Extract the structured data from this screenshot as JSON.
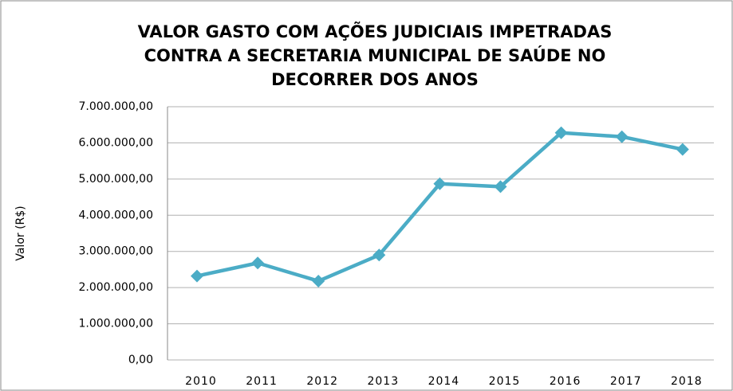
{
  "chart_data": {
    "type": "line",
    "title": [
      "VALOR GASTO COM AÇÕES JUDICIAIS IMPETRADAS",
      "CONTRA A SECRETARIA MUNICIPAL DE SAÚDE NO",
      "DECORRER DOS ANOS"
    ],
    "y_label": "Valor (R$)",
    "categories": [
      "2010",
      "2011",
      "2012",
      "2013",
      "2014",
      "2015",
      "2016",
      "2017",
      "2018"
    ],
    "series": [
      {
        "name": "Valor",
        "color": "#4bacc6",
        "values": [
          2320000,
          2680000,
          2180000,
          2900000,
          4870000,
          4790000,
          6280000,
          6170000,
          5820000
        ]
      }
    ],
    "ylim": [
      0,
      7000000
    ],
    "yticks": [
      {
        "value": 0,
        "label": "0,00"
      },
      {
        "value": 1000000,
        "label": "1.000.000,00"
      },
      {
        "value": 2000000,
        "label": "2.000.000,00"
      },
      {
        "value": 3000000,
        "label": "3.000.000,00"
      },
      {
        "value": 4000000,
        "label": "4.000.000,00"
      },
      {
        "value": 5000000,
        "label": "5.000.000,00"
      },
      {
        "value": 6000000,
        "label": "6.000.000,00"
      },
      {
        "value": 7000000,
        "label": "7.000.000,00"
      }
    ],
    "grid": true
  }
}
